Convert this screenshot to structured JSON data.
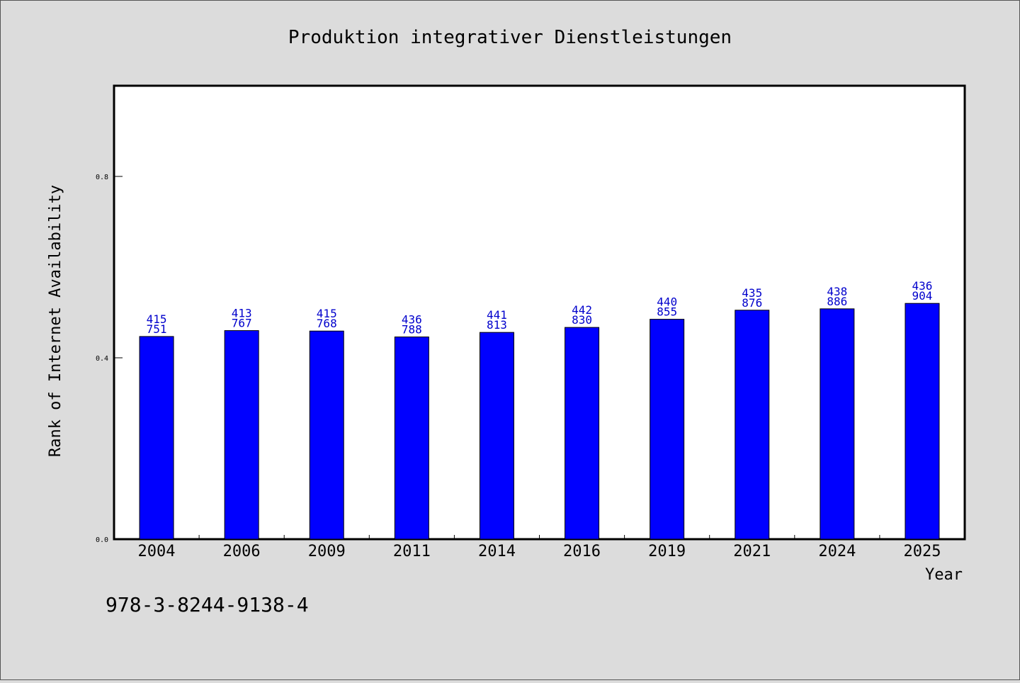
{
  "chart_data": {
    "type": "bar",
    "title": "Produktion integrativer Dienstleistungen",
    "xlabel": "Year",
    "ylabel": "Rank of Internet Availability",
    "footnote": "978-3-8244-9138-4",
    "categories": [
      "2004",
      "2006",
      "2009",
      "2011",
      "2014",
      "2016",
      "2019",
      "2021",
      "2024",
      "2025"
    ],
    "values": [
      0.447,
      0.46,
      0.459,
      0.446,
      0.456,
      0.467,
      0.485,
      0.505,
      0.508,
      0.52
    ],
    "data_labels": [
      [
        "415",
        "751"
      ],
      [
        "413",
        "767"
      ],
      [
        "415",
        "768"
      ],
      [
        "436",
        "788"
      ],
      [
        "441",
        "813"
      ],
      [
        "442",
        "830"
      ],
      [
        "440",
        "855"
      ],
      [
        "435",
        "876"
      ],
      [
        "438",
        "886"
      ],
      [
        "436",
        "904"
      ]
    ],
    "ylim": [
      0,
      1.0
    ],
    "yticks": [
      0.0,
      0.4,
      0.8
    ],
    "ytick_labels": [
      "0.0",
      "0.4",
      "0.8"
    ],
    "grid": false,
    "colors": {
      "bar": "#0000ff",
      "label": "#0000cc",
      "plot_bg": "#ffffff",
      "figure_bg": "#dcdcdc",
      "axis": "#000000"
    }
  }
}
